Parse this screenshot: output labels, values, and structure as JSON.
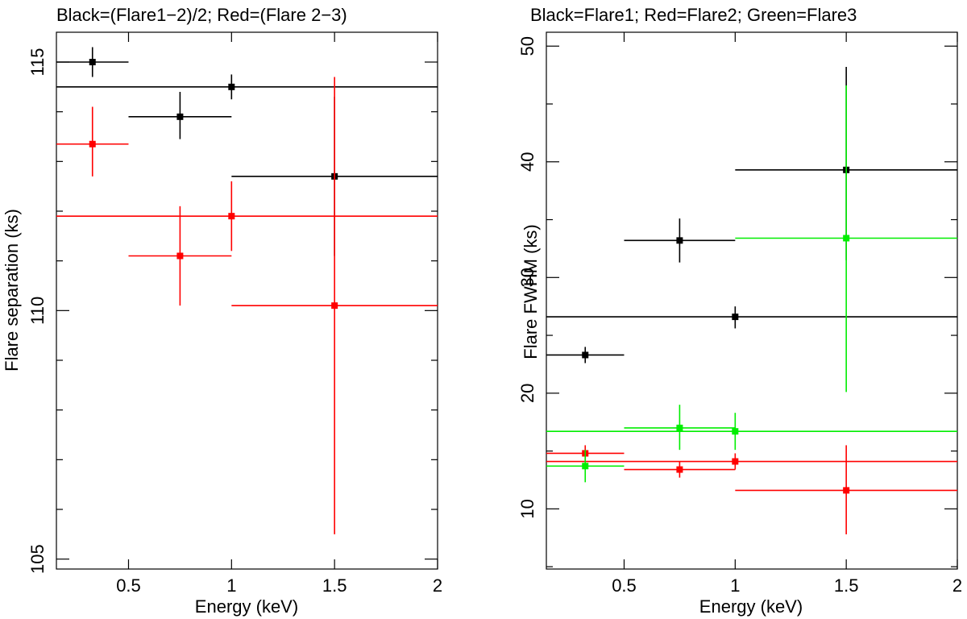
{
  "chart_data": [
    {
      "type": "scatter",
      "title": "Black=(Flare1−2)/2; Red=(Flare 2−3)",
      "xlabel": "Energy (keV)",
      "ylabel": "Flare separation (ks)",
      "xlim": [
        0.15,
        2.0
      ],
      "ylim": [
        104.8,
        115.6
      ],
      "xticks": [
        0.5,
        1,
        1.5,
        2
      ],
      "xtick_labels": [
        "0.5",
        "1",
        "1.5",
        "2"
      ],
      "yticks": [
        105,
        110,
        115
      ],
      "ytick_labels": [
        "105",
        "110",
        "115"
      ],
      "yminor": [
        106,
        107,
        108,
        109,
        111,
        112,
        113,
        114
      ],
      "grid": false,
      "series": [
        {
          "name": "(Flare1−2)/2",
          "color": "#000000",
          "points": [
            {
              "x": 0.325,
              "xlo": 0.15,
              "xhi": 0.5,
              "y": 115.0,
              "ylo": 114.7,
              "yhi": 115.3
            },
            {
              "x": 0.75,
              "xlo": 0.5,
              "xhi": 1.0,
              "y": 113.9,
              "ylo": 113.45,
              "yhi": 114.4
            },
            {
              "x": 1.0,
              "xlo": 0.15,
              "xhi": 2.0,
              "y": 114.5,
              "ylo": 114.25,
              "yhi": 114.75
            },
            {
              "x": 1.5,
              "xlo": 1.0,
              "xhi": 2.0,
              "y": 112.7,
              "ylo": 111.1,
              "yhi": 114.3
            }
          ]
        },
        {
          "name": "(Flare 2−3)",
          "color": "#ff0000",
          "points": [
            {
              "x": 0.325,
              "xlo": 0.15,
              "xhi": 0.5,
              "y": 113.35,
              "ylo": 112.7,
              "yhi": 114.1
            },
            {
              "x": 0.75,
              "xlo": 0.5,
              "xhi": 1.0,
              "y": 111.1,
              "ylo": 110.1,
              "yhi": 112.1
            },
            {
              "x": 1.0,
              "xlo": 0.15,
              "xhi": 2.0,
              "y": 111.9,
              "ylo": 111.2,
              "yhi": 112.6
            },
            {
              "x": 1.5,
              "xlo": 1.0,
              "xhi": 2.0,
              "y": 110.1,
              "ylo": 105.5,
              "yhi": 114.7
            }
          ]
        }
      ]
    },
    {
      "type": "scatter",
      "title": "Black=Flare1; Red=Flare2; Green=Flare3",
      "xlabel": "Energy (keV)",
      "ylabel": "Flare FWHM (ks)",
      "xlim": [
        0.15,
        2.0
      ],
      "ylim": [
        4.8,
        51.2
      ],
      "xticks": [
        0.5,
        1,
        1.5,
        2
      ],
      "xtick_labels": [
        "0.5",
        "1",
        "1.5",
        "2"
      ],
      "yticks": [
        10,
        20,
        30,
        40,
        50
      ],
      "ytick_labels": [
        "10",
        "20",
        "30",
        "40",
        "50"
      ],
      "yminor": [
        5,
        15,
        25,
        35,
        45
      ],
      "grid": false,
      "series": [
        {
          "name": "Flare1",
          "color": "#000000",
          "points": [
            {
              "x": 0.325,
              "xlo": 0.15,
              "xhi": 0.5,
              "y": 23.3,
              "ylo": 22.6,
              "yhi": 24.0
            },
            {
              "x": 0.75,
              "xlo": 0.5,
              "xhi": 1.0,
              "y": 33.2,
              "ylo": 31.3,
              "yhi": 35.1
            },
            {
              "x": 1.0,
              "xlo": 0.15,
              "xhi": 2.0,
              "y": 26.6,
              "ylo": 25.6,
              "yhi": 27.5
            },
            {
              "x": 1.5,
              "xlo": 1.0,
              "xhi": 2.0,
              "y": 39.3,
              "ylo": 31.5,
              "yhi": 48.2
            }
          ]
        },
        {
          "name": "Flare2",
          "color": "#ff0000",
          "points": [
            {
              "x": 0.325,
              "xlo": 0.15,
              "xhi": 0.5,
              "y": 14.8,
              "ylo": 14.2,
              "yhi": 15.5
            },
            {
              "x": 0.75,
              "xlo": 0.5,
              "xhi": 1.0,
              "y": 13.4,
              "ylo": 12.7,
              "yhi": 14.1
            },
            {
              "x": 1.0,
              "xlo": 0.15,
              "xhi": 2.0,
              "y": 14.1,
              "ylo": 13.4,
              "yhi": 14.8
            },
            {
              "x": 1.5,
              "xlo": 1.0,
              "xhi": 2.0,
              "y": 11.6,
              "ylo": 7.8,
              "yhi": 15.5
            }
          ]
        },
        {
          "name": "Flare3",
          "color": "#00ee00",
          "points": [
            {
              "x": 0.325,
              "xlo": 0.15,
              "xhi": 0.5,
              "y": 13.7,
              "ylo": 12.3,
              "yhi": 15.1
            },
            {
              "x": 0.75,
              "xlo": 0.5,
              "xhi": 1.0,
              "y": 17.0,
              "ylo": 15.1,
              "yhi": 19.0
            },
            {
              "x": 1.0,
              "xlo": 0.15,
              "xhi": 2.0,
              "y": 16.7,
              "ylo": 15.1,
              "yhi": 18.3
            },
            {
              "x": 1.5,
              "xlo": 1.0,
              "xhi": 2.0,
              "y": 33.4,
              "ylo": 20.1,
              "yhi": 46.6
            }
          ]
        }
      ]
    }
  ]
}
